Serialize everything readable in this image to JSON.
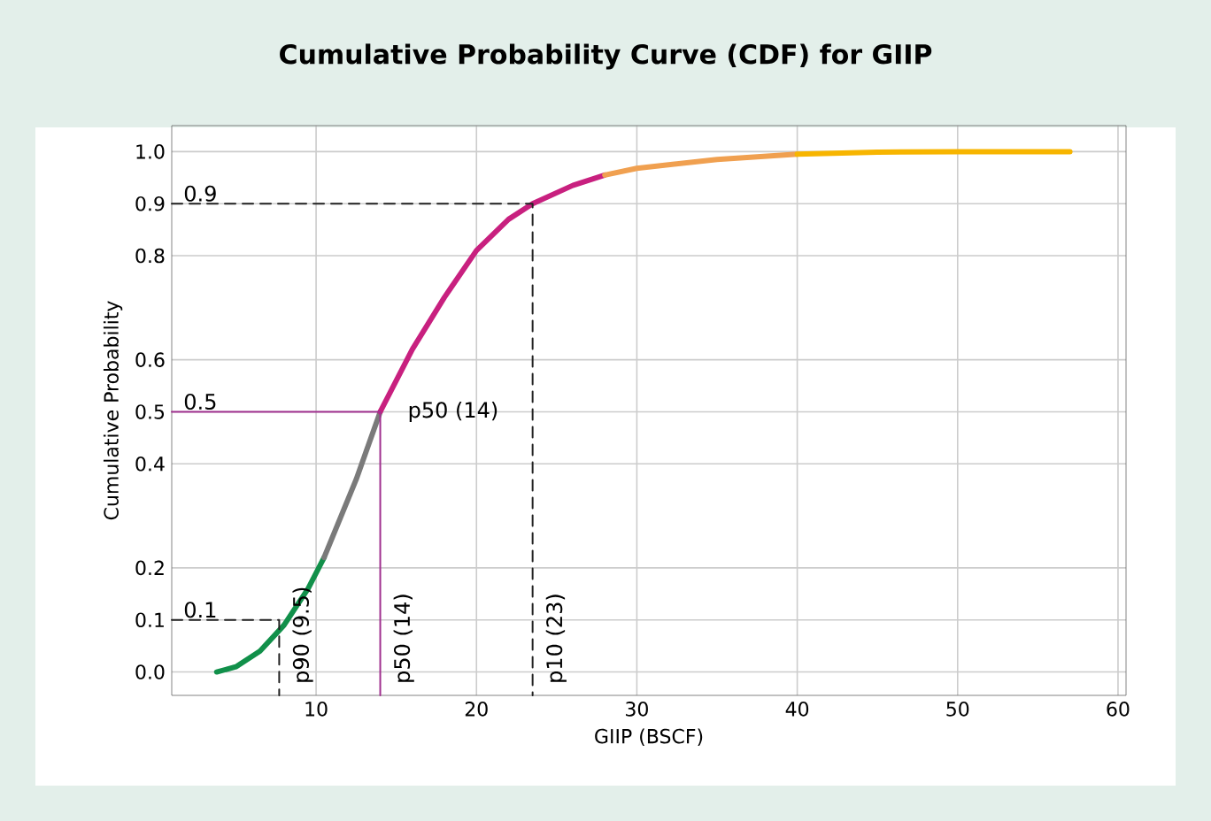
{
  "chart_data": {
    "type": "line",
    "title": "Cumulative Probability Curve (CDF) for GIIP",
    "xlabel": "GIIP (BSCF)",
    "ylabel": "Cumulative Probability",
    "xlim": [
      1,
      60.5
    ],
    "ylim": [
      -0.045,
      1.05
    ],
    "xticks": [
      10,
      20,
      30,
      40,
      50,
      60
    ],
    "yticks": [
      {
        "value": 0,
        "label": "0.0"
      },
      0.1,
      0.2,
      0.4,
      0.5,
      0.6,
      0.8,
      0.9,
      {
        "value": 1,
        "label": "1.0"
      }
    ],
    "grid": true,
    "marker": "none",
    "series": [
      {
        "color": "#11904a",
        "x": [
          3.8,
          5,
          6.5,
          8,
          9.5,
          10.5
        ],
        "values": [
          0.0,
          0.01,
          0.04,
          0.09,
          0.16,
          0.22
        ]
      },
      {
        "color": "#7a7a7a",
        "x": [
          10.5,
          12.5,
          14
        ],
        "values": [
          0.22,
          0.37,
          0.5
        ]
      },
      {
        "color": "#c8207f",
        "x": [
          14,
          16,
          18,
          20,
          22,
          23.5,
          26,
          28
        ],
        "values": [
          0.5,
          0.62,
          0.72,
          0.81,
          0.87,
          0.9,
          0.935,
          0.955
        ]
      },
      {
        "color": "#f0a050",
        "x": [
          28,
          30,
          35,
          40
        ],
        "values": [
          0.955,
          0.968,
          0.985,
          0.995
        ]
      },
      {
        "color": "#f7b500",
        "x": [
          40,
          45,
          50,
          57
        ],
        "values": [
          0.995,
          0.999,
          1.0,
          1.0
        ]
      },
      {
        "color": "#222222",
        "line_style": "dashed",
        "x": [
          1,
          7.7,
          7.7
        ],
        "values": [
          0.1,
          0.1,
          -0.045
        ]
      },
      {
        "color": "#a0308f",
        "line_style": "solid",
        "x": [
          1,
          14,
          14
        ],
        "values": [
          0.5,
          0.5,
          -0.045
        ]
      },
      {
        "color": "#222222",
        "line_style": "dashed",
        "x": [
          1,
          23.5,
          23.5
        ],
        "values": [
          0.9,
          0.9,
          -0.045
        ]
      }
    ],
    "annotations": [
      {
        "text": "0.1",
        "x": 1.6,
        "y": 0.1
      },
      {
        "text": "0.5",
        "x": 1.6,
        "y": 0.5
      },
      {
        "text": "0.9",
        "x": 1.6,
        "y": 0.9
      },
      {
        "text": "p50 (14)",
        "x": 14,
        "y": 0.5
      },
      {
        "text": "p90 (9.5)",
        "x": 7.7,
        "y": -0.045
      },
      {
        "text": "p50 (14)",
        "x": 14,
        "y": -0.045
      },
      {
        "text": "p10 (23)",
        "x": 23.5,
        "y": -0.045
      }
    ]
  }
}
